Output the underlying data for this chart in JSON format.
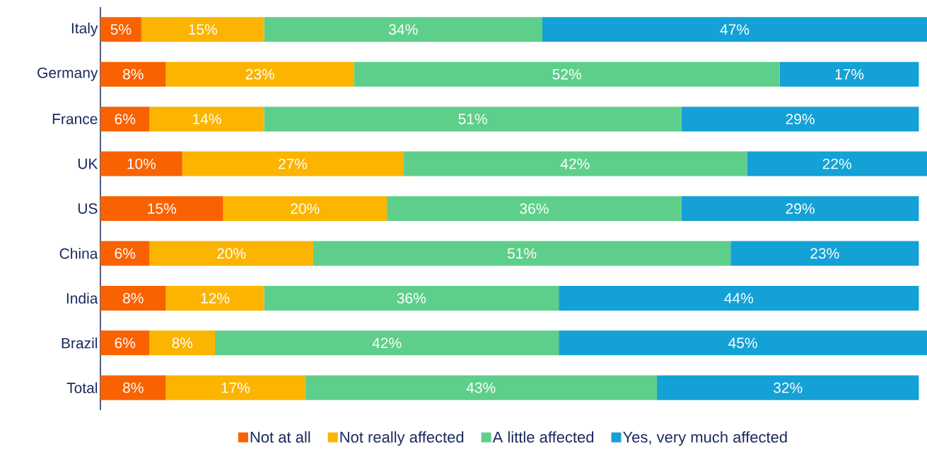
{
  "chart_data": {
    "type": "bar",
    "orientation": "horizontal",
    "stacked": true,
    "categories": [
      "Italy",
      "Germany",
      "France",
      "UK",
      "US",
      "China",
      "India",
      "Brazil",
      "Total"
    ],
    "series": [
      {
        "name": "Not at all",
        "color": "#f86200",
        "values": [
          5,
          8,
          6,
          10,
          15,
          6,
          8,
          6,
          8
        ],
        "value_labels": [
          "5%",
          "8%",
          "6%",
          "10%",
          "15%",
          "6%",
          "8%",
          "6%",
          "8%"
        ]
      },
      {
        "name": "Not really affected",
        "color": "#fbb400",
        "values": [
          15,
          23,
          14,
          27,
          20,
          20,
          12,
          8,
          17
        ],
        "value_labels": [
          "15%",
          "23%",
          "14%",
          "27%",
          "20%",
          "20%",
          "12%",
          "8%",
          "17%"
        ]
      },
      {
        "name": "A little affected",
        "color": "#5ecf8a",
        "values": [
          34,
          52,
          51,
          42,
          36,
          51,
          36,
          42,
          43
        ],
        "value_labels": [
          "34%",
          "52%",
          "51%",
          "42%",
          "36%",
          "51%",
          "36%",
          "42%",
          "43%"
        ]
      },
      {
        "name": "Yes, very much affected",
        "color": "#14a1d6",
        "values": [
          47,
          17,
          29,
          22,
          29,
          23,
          44,
          45,
          32
        ],
        "value_labels": [
          "47%",
          "17%",
          "29%",
          "22%",
          "29%",
          "23%",
          "44%",
          "45%",
          "32%"
        ]
      }
    ],
    "xlim": [
      0,
      101
    ],
    "legend": "bottom",
    "tick_labels": "y"
  }
}
